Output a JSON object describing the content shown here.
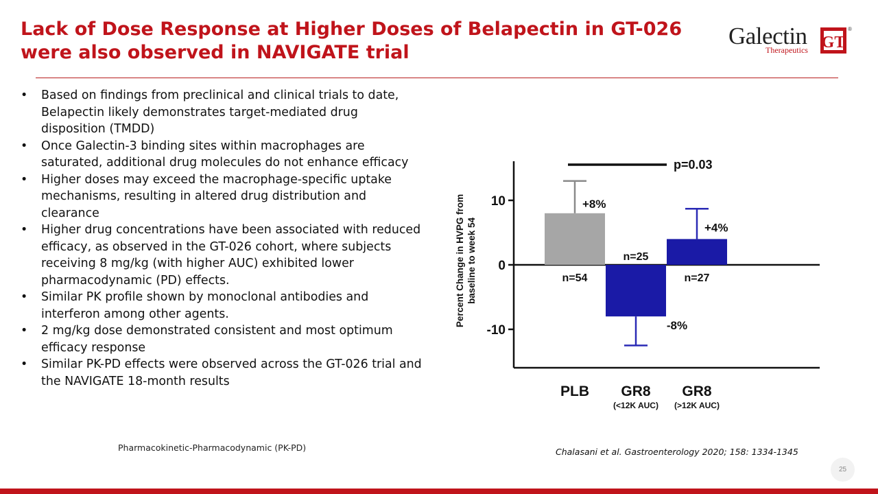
{
  "slide": {
    "title_line1": "Lack of Dose Response at Higher Doses of Belapectin in GT-026",
    "title_line2": "were also observed in NAVIGATE trial",
    "logo": {
      "name": "Galectin",
      "subtitle": "Therapeutics",
      "mark": "GT",
      "reg": "®"
    },
    "bullets": [
      "Based on findings from preclinical and clinical trials to date, Belapectin likely demonstrates target-mediated drug disposition (TMDD)",
      "Once Galectin-3 binding sites within macrophages are saturated, additional drug molecules do not enhance efficacy",
      "Higher doses may exceed the macrophage-specific uptake mechanisms, resulting in altered drug distribution and clearance",
      "Higher drug concentrations have been associated with reduced efficacy, as observed in the GT-026 cohort, where subjects receiving 8 mg/kg (with higher AUC) exhibited lower pharmacodynamic (PD) effects.",
      "Similar PK profile shown by monoclonal antibodies and interferon among other agents.",
      "2 mg/kg dose demonstrated consistent and most optimum efficacy response",
      "Similar PK-PD effects were observed across the GT-026 trial and the NAVIGATE 18-month results"
    ],
    "footnote": "Pharmacokinetic-Pharmacodynamic (PK-PD)",
    "citation": "Chalasani et al. Gastroenterology 2020; 158: 1334-1345",
    "page_number": "25",
    "colors": {
      "accent": "#c0141b",
      "placebo_bar": "#a6a6a6",
      "treatment_bar": "#1a1aa6",
      "error_bar": "#2a2ab5"
    }
  },
  "chart_data": {
    "type": "bar",
    "ylabel_line1": "Percent Change in HVPG from",
    "ylabel_line2": "baseline to week 54",
    "ylim": [
      -16,
      16
    ],
    "yticks": [
      10,
      0,
      -10
    ],
    "ytick_labels": [
      "10",
      "0",
      "-10"
    ],
    "bars": [
      {
        "category": "PLB",
        "sublabel": "",
        "value": 8,
        "error_upper": 13,
        "error_lower": null,
        "value_label": "+8%",
        "n_label": "n=54",
        "color": "#a6a6a6",
        "error_color": "#8a8a8a"
      },
      {
        "category": "GR8",
        "sublabel": "(<12K AUC)",
        "value": -8,
        "error_upper": null,
        "error_lower": -12.5,
        "value_label": "-8%",
        "n_label": "n=25",
        "color": "#1a1aa6",
        "error_color": "#2a2ab5"
      },
      {
        "category": "GR8",
        "sublabel": "(>12K AUC)",
        "value": 4,
        "error_upper": 8.7,
        "error_lower": null,
        "value_label": "+4%",
        "n_label": "n=27",
        "color": "#1a1aa6",
        "error_color": "#2a2ab5"
      }
    ],
    "significance": {
      "label": "p=0.03",
      "from_bar": 0,
      "to_bar": 1
    }
  }
}
